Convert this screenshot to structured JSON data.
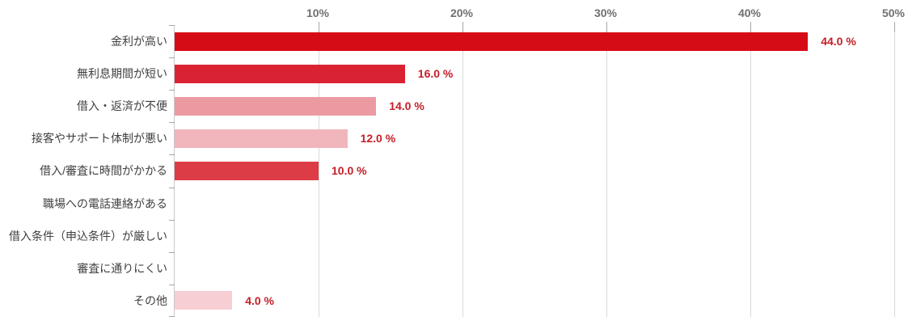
{
  "chart_data": {
    "type": "bar",
    "orientation": "horizontal",
    "title": "",
    "xlabel": "",
    "ylabel": "",
    "grid": true,
    "legend": false,
    "categories": [
      "金利が高い",
      "無利息期間が短い",
      "借入・返済が不便",
      "接客やサポート体制が悪い",
      "借入/審査に時間がかかる",
      "職場への電話連絡がある",
      "借入条件（申込条件）が厳しい",
      "審査に通りにくい",
      "その他"
    ],
    "values": [
      44.0,
      16.0,
      14.0,
      12.0,
      10.0,
      0,
      0,
      0,
      4.0
    ],
    "value_labels": [
      "44.0 %",
      "16.0 %",
      "14.0 %",
      "12.0 %",
      "10.0 %",
      "",
      "",
      "",
      "4.0 %"
    ],
    "bar_colors": [
      "#d50c16",
      "#da2332",
      "#ec9aa2",
      "#f0b6bc",
      "#dc3c46",
      "none",
      "none",
      "none",
      "#f6ced3"
    ],
    "x_axis": {
      "position": "top",
      "min": 0,
      "max": 50,
      "ticks": [
        "10%",
        "20%",
        "30%",
        "40%",
        "50%"
      ],
      "tick_values": [
        10,
        20,
        30,
        40,
        50
      ]
    },
    "colors": {
      "value_label": "#c41e27",
      "category_label": "#404040",
      "axis_tick_label": "#707070",
      "gridline": "#d9d9d9",
      "axis_line": "#c9c9c9",
      "tick_mark": "#a6a6a6",
      "background": "#ffffff"
    }
  }
}
